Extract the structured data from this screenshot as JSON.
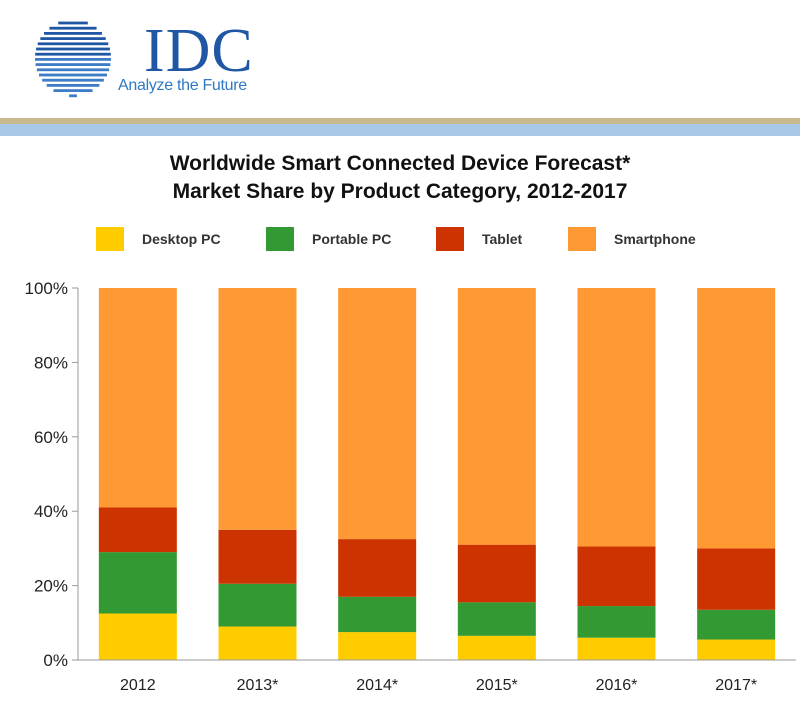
{
  "header": {
    "brand": "IDC",
    "tagline": "Analyze the Future",
    "logo_icon": "globe-icon"
  },
  "colors": {
    "desktop": "#ffcc00",
    "portable": "#339933",
    "tablet": "#cc3300",
    "smartphone": "#ff9933",
    "brand_blue": "#1f57a5"
  },
  "chart_data": {
    "type": "bar",
    "stacked": true,
    "title": "Worldwide Smart Connected Device Forecast*",
    "subtitle": "Market Share by Product Category, 2012-2017",
    "categories": [
      "2012",
      "2013*",
      "2014*",
      "2015*",
      "2016*",
      "2017*"
    ],
    "series": [
      {
        "name": "Desktop PC",
        "values": [
          12.5,
          9,
          7.5,
          6.5,
          6,
          5.5
        ]
      },
      {
        "name": "Portable PC",
        "values": [
          16.5,
          11.5,
          9.5,
          9,
          8.5,
          8
        ]
      },
      {
        "name": "Tablet",
        "values": [
          12,
          14.5,
          15.5,
          15.5,
          16,
          16.5
        ]
      },
      {
        "name": "Smartphone",
        "values": [
          59,
          65,
          67.5,
          69,
          69.5,
          70
        ]
      }
    ],
    "ylim": [
      0,
      100
    ],
    "yticks": [
      "0%",
      "20%",
      "40%",
      "60%",
      "80%",
      "100%"
    ],
    "xlabel": "",
    "ylabel": "",
    "legend_position": "top",
    "grid": false
  }
}
